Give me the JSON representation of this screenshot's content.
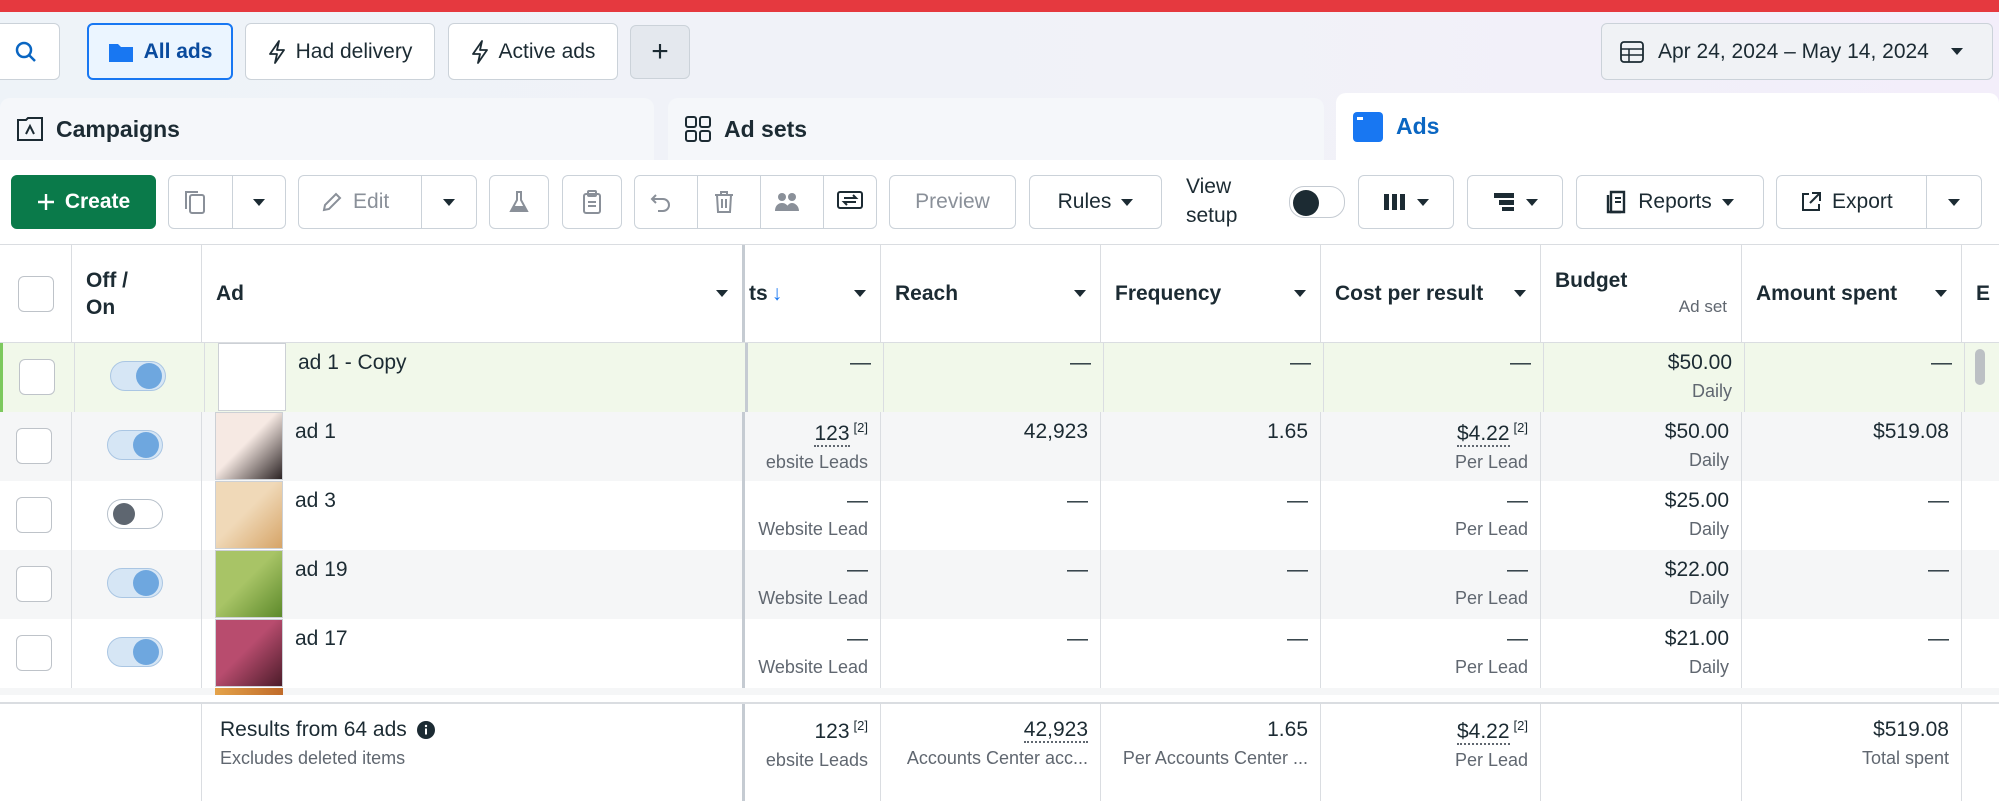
{
  "top_filters": {
    "search_icon": "search-icon",
    "all_ads": "All ads",
    "had_delivery": "Had delivery",
    "active_ads": "Active ads",
    "add_filter": "+"
  },
  "date_range": "Apr 24, 2024 – May 14, 2024",
  "tabs": {
    "campaigns": "Campaigns",
    "ad_sets": "Ad sets",
    "ads": "Ads"
  },
  "toolbar": {
    "create": "Create",
    "edit": "Edit",
    "preview": "Preview",
    "rules": "Rules",
    "view_setup": "View setup",
    "reports": "Reports",
    "export": "Export"
  },
  "columns": {
    "off_on": "Off / On",
    "ad": "Ad",
    "results": "ts",
    "reach": "Reach",
    "frequency": "Frequency",
    "cost_per_result": "Cost per result",
    "budget": "Budget",
    "budget_sub": "Ad set",
    "amount_spent": "Amount spent",
    "next": "E"
  },
  "rows": [
    {
      "name": "ad 1 - Copy",
      "on": true,
      "results": "—",
      "results_sub": "",
      "reach": "—",
      "frequency": "—",
      "cost": "—",
      "cost_sup": "",
      "cost_sub": "",
      "budget": "$50.00",
      "budget_sub": "Daily",
      "spent": "—"
    },
    {
      "name": "ad 1",
      "on": true,
      "results": "123",
      "results_sup": "[2]",
      "results_sub": "ebsite Leads",
      "reach": "42,923",
      "frequency": "1.65",
      "cost": "$4.22",
      "cost_sup": "[2]",
      "cost_sub": "Per Lead",
      "budget": "$50.00",
      "budget_sub": "Daily",
      "spent": "$519.08"
    },
    {
      "name": "ad 3",
      "on": false,
      "results": "—",
      "results_sub": "Website Lead",
      "reach": "—",
      "frequency": "—",
      "cost": "—",
      "cost_sup": "",
      "cost_sub": "Per Lead",
      "budget": "$25.00",
      "budget_sub": "Daily",
      "spent": "—"
    },
    {
      "name": "ad 19",
      "on": true,
      "results": "—",
      "results_sub": "Website Lead",
      "reach": "—",
      "frequency": "—",
      "cost": "—",
      "cost_sup": "",
      "cost_sub": "Per Lead",
      "budget": "$22.00",
      "budget_sub": "Daily",
      "spent": "—"
    },
    {
      "name": "ad 17",
      "on": true,
      "results": "—",
      "results_sub": "Website Lead",
      "reach": "—",
      "frequency": "—",
      "cost": "—",
      "cost_sup": "",
      "cost_sub": "Per Lead",
      "budget": "$21.00",
      "budget_sub": "Daily",
      "spent": "—"
    }
  ],
  "footer": {
    "results_label": "Results from 64 ads",
    "results_sub": "Excludes deleted items",
    "results": "123",
    "results_sup": "[2]",
    "results_sub2": "ebsite Leads",
    "reach": "42,923",
    "reach_sub": "Accounts Center acc...",
    "frequency": "1.65",
    "frequency_sub": "Per Accounts Center ...",
    "cost": "$4.22",
    "cost_sup": "[2]",
    "cost_sub": "Per Lead",
    "spent": "$519.08",
    "spent_sub": "Total spent"
  },
  "colors": {
    "brand_blue": "#1877f2",
    "create_green": "#0a7a4a",
    "alert_red": "#e5393f"
  }
}
